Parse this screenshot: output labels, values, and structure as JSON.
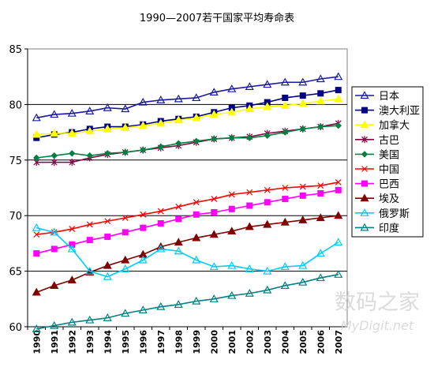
{
  "chart_data": {
    "type": "line",
    "title": "1990—2007若干国家平均寿命表",
    "xlabel": "",
    "ylabel": "",
    "x": [
      "1990",
      "1991",
      "1992",
      "1993",
      "1994",
      "1995",
      "1996",
      "1997",
      "1998",
      "1999",
      "2000",
      "2001",
      "2002",
      "2003",
      "2004",
      "2005",
      "2006",
      "2007"
    ],
    "ylim": [
      60,
      85
    ],
    "yticks": [
      60,
      65,
      70,
      75,
      80,
      85
    ],
    "grid": true,
    "legend_position": "right",
    "series": [
      {
        "name": "日本",
        "color": "#1a1aa0",
        "marker": "triangle-open",
        "values": [
          78.8,
          79.1,
          79.2,
          79.4,
          79.7,
          79.6,
          80.2,
          80.4,
          80.5,
          80.6,
          81.1,
          81.4,
          81.6,
          81.8,
          82.0,
          82.0,
          82.3,
          82.5
        ]
      },
      {
        "name": "澳大利亚",
        "color": "#000080",
        "marker": "square",
        "values": [
          77.0,
          77.3,
          77.5,
          77.8,
          78.0,
          78.0,
          78.2,
          78.5,
          78.7,
          78.9,
          79.3,
          79.7,
          79.9,
          80.2,
          80.6,
          80.8,
          81.0,
          81.3
        ]
      },
      {
        "name": "加拿大",
        "color": "#ffff00",
        "marker": "triangle",
        "values": [
          77.3,
          77.4,
          77.4,
          77.6,
          77.8,
          77.9,
          78.1,
          78.3,
          78.6,
          78.8,
          79.1,
          79.3,
          79.6,
          79.8,
          79.9,
          80.1,
          80.3,
          80.5
        ]
      },
      {
        "name": "古巴",
        "color": "#800040",
        "marker": "asterisk",
        "values": [
          74.8,
          74.8,
          74.8,
          75.2,
          75.5,
          75.7,
          75.9,
          76.1,
          76.3,
          76.6,
          76.9,
          77.0,
          77.1,
          77.4,
          77.6,
          77.8,
          78.0,
          78.3
        ]
      },
      {
        "name": "美国",
        "color": "#008040",
        "marker": "diamond",
        "values": [
          75.2,
          75.4,
          75.6,
          75.4,
          75.6,
          75.7,
          75.9,
          76.2,
          76.5,
          76.7,
          76.9,
          77.0,
          77.0,
          77.2,
          77.5,
          77.8,
          78.0,
          78.1
        ]
      },
      {
        "name": "中国",
        "color": "#ff0000",
        "marker": "cross",
        "values": [
          68.3,
          68.5,
          68.8,
          69.2,
          69.5,
          69.8,
          70.1,
          70.4,
          70.8,
          71.2,
          71.5,
          71.9,
          72.1,
          72.3,
          72.5,
          72.6,
          72.7,
          73.0
        ]
      },
      {
        "name": "巴西",
        "color": "#ff00ff",
        "marker": "square",
        "values": [
          66.6,
          67.0,
          67.4,
          67.8,
          68.1,
          68.5,
          68.9,
          69.3,
          69.7,
          70.1,
          70.3,
          70.6,
          70.9,
          71.2,
          71.5,
          71.8,
          72.0,
          72.3
        ]
      },
      {
        "name": "埃及",
        "color": "#800000",
        "marker": "triangle",
        "values": [
          63.1,
          63.7,
          64.2,
          64.9,
          65.5,
          66.0,
          66.5,
          67.2,
          67.6,
          68.0,
          68.3,
          68.6,
          69.0,
          69.2,
          69.4,
          69.6,
          69.8,
          70.0
        ]
      },
      {
        "name": "俄罗斯",
        "color": "#00ccff",
        "marker": "triangle-open",
        "values": [
          68.9,
          68.5,
          67.0,
          65.0,
          64.5,
          65.2,
          66.0,
          67.0,
          66.8,
          66.0,
          65.4,
          65.5,
          65.2,
          65.0,
          65.4,
          65.5,
          66.6,
          67.6
        ]
      },
      {
        "name": "印度",
        "color": "#008080",
        "marker": "triangle-open",
        "values": [
          59.8,
          60.1,
          60.4,
          60.6,
          60.8,
          61.2,
          61.5,
          61.8,
          62.0,
          62.3,
          62.5,
          62.8,
          63.0,
          63.3,
          63.7,
          64.0,
          64.4,
          64.7
        ]
      }
    ]
  },
  "watermark": {
    "line1": "数码之家",
    "line2": "MyDigit.net"
  }
}
